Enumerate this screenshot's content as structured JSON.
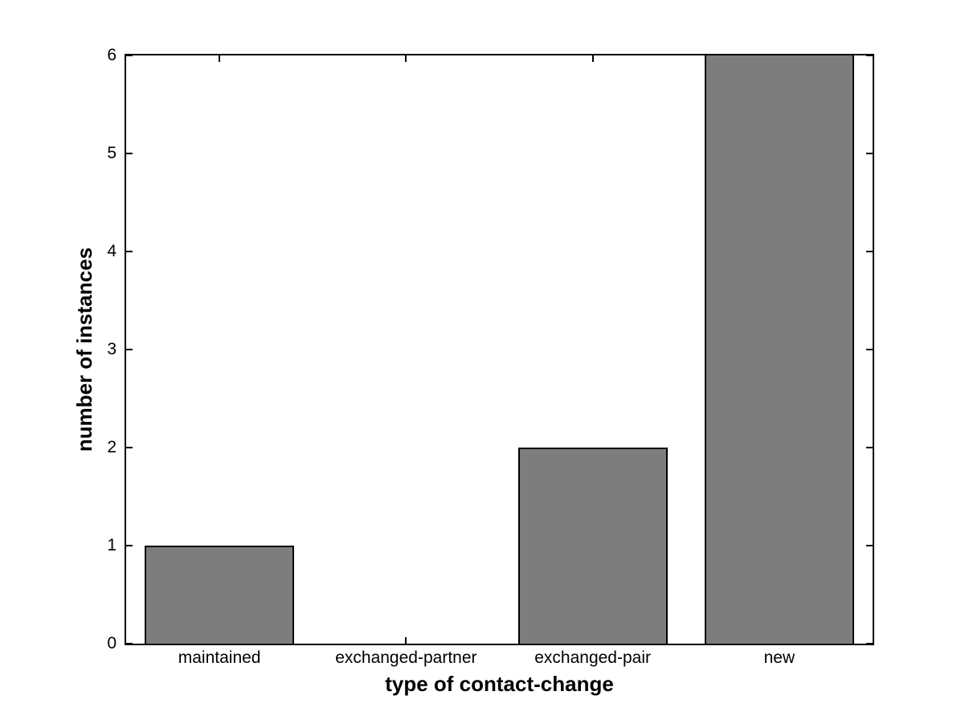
{
  "chart_data": {
    "type": "bar",
    "categories": [
      "maintained",
      "exchanged-partner",
      "exchanged-pair",
      "new"
    ],
    "values": [
      1,
      0,
      2,
      6
    ],
    "xlabel": "type of contact-change",
    "ylabel": "number of instances",
    "ylim": [
      0,
      6
    ],
    "yticks": [
      0,
      1,
      2,
      3,
      4,
      5,
      6
    ],
    "bar_width_fraction": 0.8,
    "grid": false,
    "tick_direction": "in",
    "box": true,
    "colors": {
      "bar_fill": "#7d7d7d",
      "bar_edge": "#000000",
      "axis": "#000000",
      "text": "#000000",
      "background": "#ffffff"
    }
  }
}
